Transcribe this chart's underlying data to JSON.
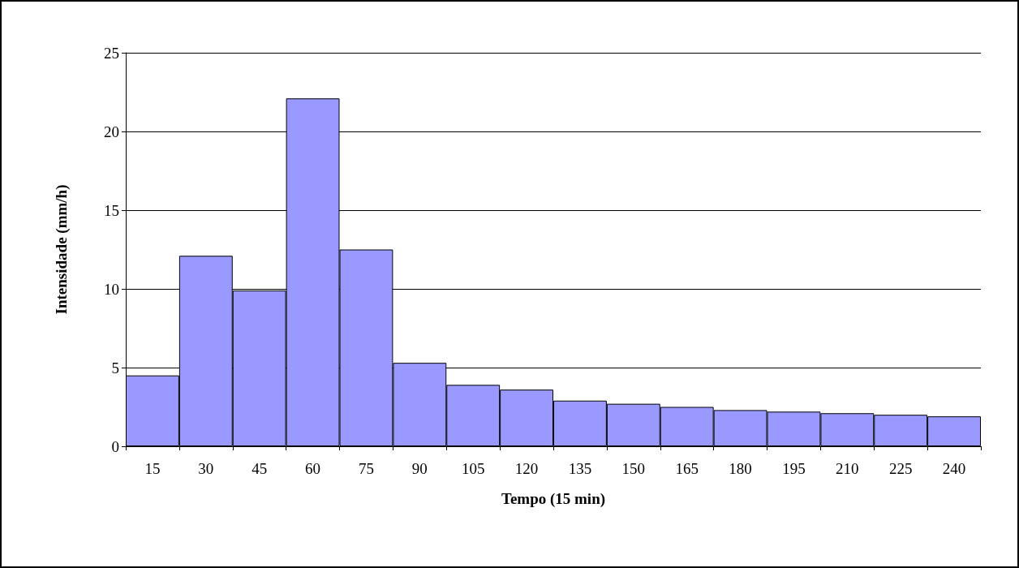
{
  "chart_data": {
    "type": "bar",
    "xlabel": "Tempo (15 min)",
    "ylabel": "Intensidade (mm/h)",
    "categories": [
      "15",
      "30",
      "45",
      "60",
      "75",
      "90",
      "105",
      "120",
      "135",
      "150",
      "165",
      "180",
      "195",
      "210",
      "225",
      "240"
    ],
    "values": [
      4.5,
      12.1,
      9.9,
      22.1,
      12.5,
      5.3,
      3.9,
      3.6,
      2.9,
      2.7,
      2.5,
      2.3,
      2.2,
      2.1,
      2.0,
      1.9
    ],
    "color": "#9999ff",
    "ylim": [
      0,
      25
    ],
    "yticks": [
      0,
      5,
      10,
      15,
      20,
      25
    ],
    "grid": "y"
  }
}
